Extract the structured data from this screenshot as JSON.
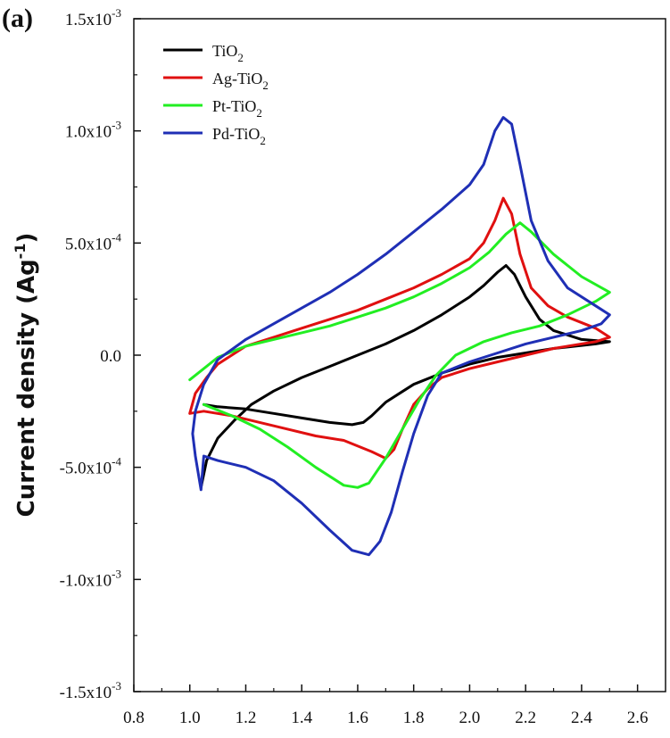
{
  "panel_label": "(a)",
  "chart_data": {
    "type": "line",
    "title": "",
    "xlabel": "",
    "ylabel": "Current density (Ag-1)",
    "ylabel_parts": {
      "main": "Current density (Ag",
      "sup": "-1",
      "close": ")"
    },
    "xlim": [
      0.8,
      2.7
    ],
    "ylim": [
      -0.0015,
      0.0015
    ],
    "x_ticks": [
      0.8,
      1.0,
      1.2,
      1.4,
      1.6,
      1.8,
      2.0,
      2.2,
      2.4,
      2.6
    ],
    "x_tick_labels": [
      "0.8",
      "1.0",
      "1.2",
      "1.4",
      "1.6",
      "1.8",
      "2.0",
      "2.2",
      "2.4",
      "2.6"
    ],
    "y_ticks": [
      -0.0015,
      -0.001,
      -0.0005,
      0.0,
      0.0005,
      0.001,
      0.0015
    ],
    "y_tick_labels": [
      {
        "mant": "-1.5x10",
        "exp": "-3"
      },
      {
        "mant": "-1.0x10",
        "exp": "-3"
      },
      {
        "mant": "-5.0x10",
        "exp": "-4"
      },
      {
        "mant": "0.0",
        "exp": ""
      },
      {
        "mant": "5.0x10",
        "exp": "-4"
      },
      {
        "mant": "1.0x10",
        "exp": "-3"
      },
      {
        "mant": "1.5x10",
        "exp": "-3"
      }
    ],
    "grid": false,
    "legend_position": "top-left",
    "series": [
      {
        "name": "TiO2",
        "label_main": "TiO",
        "label_sub": "2",
        "color": "#000000",
        "points": [
          [
            1.04,
            -0.00059
          ],
          [
            1.06,
            -0.00047
          ],
          [
            1.1,
            -0.00037
          ],
          [
            1.16,
            -0.00029
          ],
          [
            1.22,
            -0.00022
          ],
          [
            1.3,
            -0.00016
          ],
          [
            1.4,
            -0.0001
          ],
          [
            1.5,
            -5e-05
          ],
          [
            1.6,
            0.0
          ],
          [
            1.7,
            5e-05
          ],
          [
            1.8,
            0.00011
          ],
          [
            1.9,
            0.00018
          ],
          [
            2.0,
            0.00026
          ],
          [
            2.05,
            0.00031
          ],
          [
            2.1,
            0.00037
          ],
          [
            2.13,
            0.0004
          ],
          [
            2.16,
            0.00036
          ],
          [
            2.2,
            0.00026
          ],
          [
            2.25,
            0.00016
          ],
          [
            2.3,
            0.00011
          ],
          [
            2.4,
            7e-05
          ],
          [
            2.5,
            6e-05
          ],
          [
            2.45,
            5e-05
          ],
          [
            2.3,
            3e-05
          ],
          [
            2.2,
            1e-05
          ],
          [
            2.1,
            -1e-05
          ],
          [
            2.0,
            -4e-05
          ],
          [
            1.9,
            -8e-05
          ],
          [
            1.8,
            -0.00013
          ],
          [
            1.75,
            -0.00017
          ],
          [
            1.7,
            -0.00021
          ],
          [
            1.65,
            -0.00027
          ],
          [
            1.62,
            -0.0003
          ],
          [
            1.58,
            -0.00031
          ],
          [
            1.5,
            -0.0003
          ],
          [
            1.4,
            -0.00028
          ],
          [
            1.3,
            -0.00026
          ],
          [
            1.2,
            -0.00024
          ],
          [
            1.1,
            -0.00023
          ],
          [
            1.05,
            -0.00022
          ]
        ]
      },
      {
        "name": "Ag-TiO2",
        "label_main": "Ag-TiO",
        "label_sub": "2",
        "color": "#e01010",
        "points": [
          [
            1.0,
            -0.00026
          ],
          [
            1.02,
            -0.00017
          ],
          [
            1.06,
            -0.0001
          ],
          [
            1.1,
            -4e-05
          ],
          [
            1.2,
            4e-05
          ],
          [
            1.3,
            8e-05
          ],
          [
            1.4,
            0.00012
          ],
          [
            1.5,
            0.00016
          ],
          [
            1.6,
            0.0002
          ],
          [
            1.7,
            0.00025
          ],
          [
            1.8,
            0.0003
          ],
          [
            1.9,
            0.00036
          ],
          [
            2.0,
            0.00043
          ],
          [
            2.05,
            0.0005
          ],
          [
            2.09,
            0.0006
          ],
          [
            2.12,
            0.0007
          ],
          [
            2.15,
            0.00063
          ],
          [
            2.18,
            0.00045
          ],
          [
            2.22,
            0.0003
          ],
          [
            2.28,
            0.00022
          ],
          [
            2.35,
            0.00017
          ],
          [
            2.45,
            0.00012
          ],
          [
            2.5,
            8e-05
          ],
          [
            2.45,
            6e-05
          ],
          [
            2.3,
            3e-05
          ],
          [
            2.2,
            0.0
          ],
          [
            2.1,
            -3e-05
          ],
          [
            2.0,
            -6e-05
          ],
          [
            1.9,
            -0.0001
          ],
          [
            1.85,
            -0.00015
          ],
          [
            1.8,
            -0.00022
          ],
          [
            1.76,
            -0.00033
          ],
          [
            1.73,
            -0.00042
          ],
          [
            1.7,
            -0.00046
          ],
          [
            1.65,
            -0.00043
          ],
          [
            1.55,
            -0.00038
          ],
          [
            1.45,
            -0.00036
          ],
          [
            1.35,
            -0.00033
          ],
          [
            1.25,
            -0.0003
          ],
          [
            1.15,
            -0.00027
          ],
          [
            1.05,
            -0.00025
          ],
          [
            1.0,
            -0.00026
          ]
        ]
      },
      {
        "name": "Pt-TiO2",
        "label_main": "Pt-TiO",
        "label_sub": "2",
        "color": "#22ee22",
        "points": [
          [
            1.0,
            -0.00011
          ],
          [
            1.04,
            -7e-05
          ],
          [
            1.1,
            -1e-05
          ],
          [
            1.2,
            4e-05
          ],
          [
            1.3,
            7e-05
          ],
          [
            1.4,
            0.0001
          ],
          [
            1.5,
            0.00013
          ],
          [
            1.6,
            0.00017
          ],
          [
            1.7,
            0.00021
          ],
          [
            1.8,
            0.00026
          ],
          [
            1.9,
            0.00032
          ],
          [
            2.0,
            0.00039
          ],
          [
            2.07,
            0.00046
          ],
          [
            2.13,
            0.00054
          ],
          [
            2.18,
            0.00059
          ],
          [
            2.22,
            0.00055
          ],
          [
            2.3,
            0.00045
          ],
          [
            2.4,
            0.00035
          ],
          [
            2.5,
            0.00028
          ],
          [
            2.45,
            0.00024
          ],
          [
            2.35,
            0.00018
          ],
          [
            2.25,
            0.00013
          ],
          [
            2.15,
            0.0001
          ],
          [
            2.05,
            6e-05
          ],
          [
            1.95,
            0.0
          ],
          [
            1.88,
            -9e-05
          ],
          [
            1.82,
            -0.0002
          ],
          [
            1.76,
            -0.00033
          ],
          [
            1.7,
            -0.00046
          ],
          [
            1.64,
            -0.00057
          ],
          [
            1.6,
            -0.00059
          ],
          [
            1.55,
            -0.00058
          ],
          [
            1.45,
            -0.0005
          ],
          [
            1.35,
            -0.00041
          ],
          [
            1.25,
            -0.00033
          ],
          [
            1.15,
            -0.00027
          ],
          [
            1.05,
            -0.00022
          ]
        ]
      },
      {
        "name": "Pd-TiO2",
        "label_main": "Pd-TiO",
        "label_sub": "2",
        "color": "#1f2fb5",
        "points": [
          [
            1.04,
            -0.0006
          ],
          [
            1.02,
            -0.00045
          ],
          [
            1.01,
            -0.00035
          ],
          [
            1.02,
            -0.00025
          ],
          [
            1.05,
            -0.00013
          ],
          [
            1.1,
            -2e-05
          ],
          [
            1.2,
            7e-05
          ],
          [
            1.3,
            0.00014
          ],
          [
            1.4,
            0.00021
          ],
          [
            1.5,
            0.00028
          ],
          [
            1.6,
            0.00036
          ],
          [
            1.7,
            0.00045
          ],
          [
            1.8,
            0.00055
          ],
          [
            1.9,
            0.00065
          ],
          [
            2.0,
            0.00076
          ],
          [
            2.05,
            0.00085
          ],
          [
            2.09,
            0.001
          ],
          [
            2.12,
            0.00106
          ],
          [
            2.15,
            0.00103
          ],
          [
            2.18,
            0.00085
          ],
          [
            2.22,
            0.0006
          ],
          [
            2.28,
            0.00042
          ],
          [
            2.35,
            0.0003
          ],
          [
            2.45,
            0.00022
          ],
          [
            2.5,
            0.00018
          ],
          [
            2.47,
            0.00014
          ],
          [
            2.4,
            0.00011
          ],
          [
            2.3,
            8e-05
          ],
          [
            2.2,
            5e-05
          ],
          [
            2.1,
            1e-05
          ],
          [
            2.0,
            -3e-05
          ],
          [
            1.9,
            -8e-05
          ],
          [
            1.85,
            -0.00018
          ],
          [
            1.8,
            -0.00035
          ],
          [
            1.76,
            -0.00052
          ],
          [
            1.72,
            -0.0007
          ],
          [
            1.68,
            -0.00083
          ],
          [
            1.64,
            -0.00089
          ],
          [
            1.58,
            -0.00087
          ],
          [
            1.5,
            -0.00078
          ],
          [
            1.4,
            -0.00066
          ],
          [
            1.3,
            -0.00056
          ],
          [
            1.2,
            -0.0005
          ],
          [
            1.1,
            -0.00047
          ],
          [
            1.05,
            -0.00045
          ],
          [
            1.04,
            -0.0006
          ]
        ]
      }
    ]
  }
}
